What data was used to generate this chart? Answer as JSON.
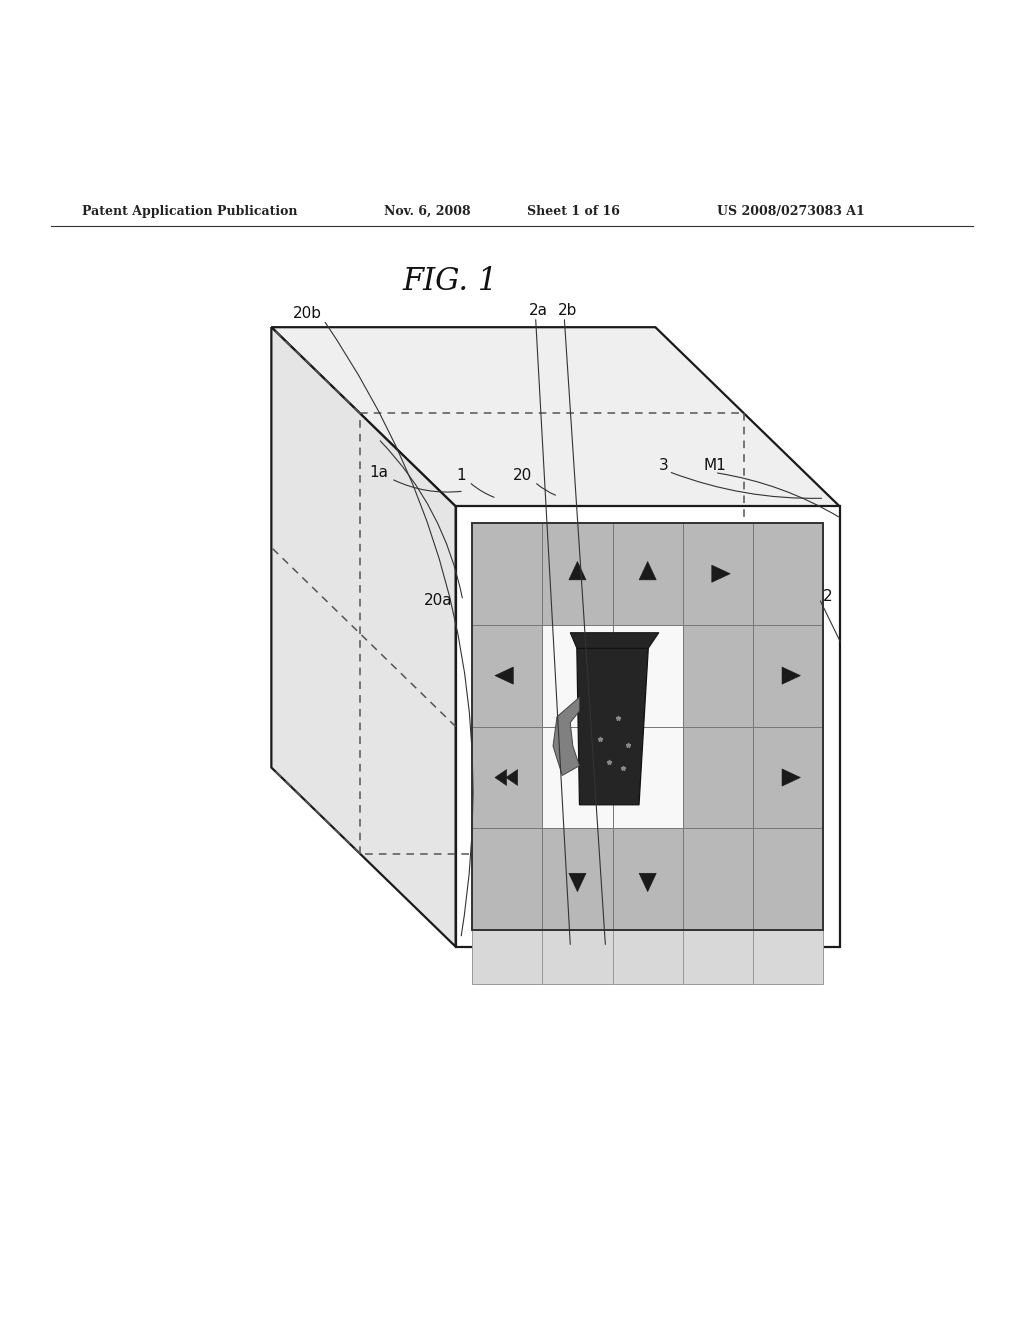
{
  "bg_color": "#ffffff",
  "header_text": "Patent Application Publication",
  "header_date": "Nov. 6, 2008",
  "header_sheet": "Sheet 1 of 16",
  "header_patent": "US 2008/0273083 A1",
  "fig_label": "FIG. 1",
  "line_color": "#1a1a1a",
  "dashed_color": "#444444",
  "gray_tile": "#b8b8b8",
  "light_tile": "#dddddd"
}
